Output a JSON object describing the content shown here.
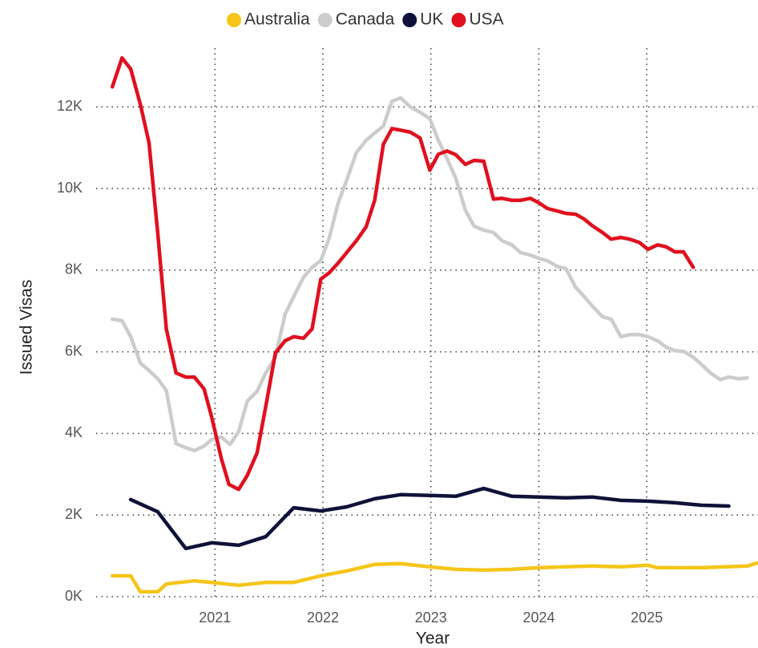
{
  "chart_data": {
    "type": "line",
    "x_label": "Year",
    "y_label": "Issued Visas",
    "xlim": [
      2019.9,
      2026.03
    ],
    "xticks": [
      2021,
      2022,
      2023,
      2024,
      2025
    ],
    "ylim": [
      0,
      13440
    ],
    "yticks": [
      {
        "value": 0,
        "label": "0K"
      },
      {
        "value": 2000,
        "label": "2K"
      },
      {
        "value": 4000,
        "label": "4K"
      },
      {
        "value": 6000,
        "label": "6K"
      },
      {
        "value": 8000,
        "label": "8K"
      },
      {
        "value": 10000,
        "label": "10K"
      },
      {
        "value": 12000,
        "label": "12K"
      }
    ],
    "grid": true,
    "legend": "top",
    "series": [
      {
        "name": "Australia",
        "color": "#f5c518",
        "x": [
          2020.05,
          2020.22,
          2020.31,
          2020.47,
          2020.55,
          2020.81,
          2020.97,
          2021.22,
          2021.47,
          2021.73,
          2021.98,
          2022.22,
          2022.48,
          2022.72,
          2022.99,
          2023.23,
          2023.49,
          2023.75,
          2024.0,
          2024.25,
          2024.5,
          2024.76,
          2025.01,
          2025.1,
          2025.51,
          2025.93,
          2026.03
        ],
        "values": [
          510,
          510,
          120,
          120,
          310,
          390,
          350,
          280,
          350,
          350,
          510,
          630,
          790,
          810,
          730,
          670,
          650,
          670,
          710,
          730,
          750,
          730,
          770,
          710,
          710,
          750,
          830
        ]
      },
      {
        "name": "Canada",
        "color": "#cccccc",
        "x": [
          2020.05,
          2020.14,
          2020.22,
          2020.31,
          2020.39,
          2020.47,
          2020.55,
          2020.64,
          2020.73,
          2020.81,
          2020.9,
          2020.97,
          2021.06,
          2021.14,
          2021.22,
          2021.3,
          2021.39,
          2021.47,
          2021.56,
          2021.65,
          2021.73,
          2021.82,
          2021.9,
          2021.98,
          2022.06,
          2022.14,
          2022.22,
          2022.31,
          2022.4,
          2022.48,
          2022.56,
          2022.64,
          2022.72,
          2022.81,
          2022.9,
          2022.99,
          2023.07,
          2023.15,
          2023.23,
          2023.32,
          2023.4,
          2023.49,
          2023.58,
          2023.66,
          2023.75,
          2023.83,
          2023.92,
          2024.0,
          2024.08,
          2024.17,
          2024.25,
          2024.34,
          2024.42,
          2024.5,
          2024.59,
          2024.67,
          2024.76,
          2024.84,
          2024.93,
          2025.01,
          2025.1,
          2025.18,
          2025.26,
          2025.34,
          2025.43,
          2025.51,
          2025.59,
          2025.68,
          2025.76,
          2025.85,
          2025.93
        ],
        "values": [
          6800,
          6760,
          6370,
          5720,
          5540,
          5340,
          5050,
          3750,
          3650,
          3580,
          3690,
          3850,
          3910,
          3730,
          4050,
          4790,
          5030,
          5480,
          5870,
          6920,
          7350,
          7820,
          8070,
          8230,
          8800,
          9630,
          10200,
          10880,
          11180,
          11360,
          11530,
          12140,
          12220,
          12000,
          11870,
          11710,
          11180,
          10730,
          10260,
          9470,
          9080,
          8980,
          8920,
          8720,
          8620,
          8430,
          8370,
          8290,
          8230,
          8090,
          8040,
          7580,
          7350,
          7110,
          6860,
          6800,
          6370,
          6420,
          6420,
          6370,
          6270,
          6110,
          6030,
          6010,
          5870,
          5680,
          5480,
          5320,
          5380,
          5340,
          5360
        ]
      },
      {
        "name": "UK",
        "color": "#0f1238",
        "x": [
          2020.22,
          2020.47,
          2020.73,
          2020.97,
          2021.22,
          2021.47,
          2021.73,
          2021.98,
          2022.22,
          2022.48,
          2022.72,
          2022.99,
          2023.23,
          2023.49,
          2023.75,
          2024.0,
          2024.25,
          2024.5,
          2024.76,
          2025.01,
          2025.26,
          2025.51,
          2025.76
        ],
        "values": [
          2380,
          2080,
          1180,
          1320,
          1260,
          1470,
          2180,
          2100,
          2200,
          2400,
          2500,
          2480,
          2460,
          2650,
          2460,
          2440,
          2420,
          2440,
          2360,
          2340,
          2300,
          2240,
          2220
        ]
      },
      {
        "name": "USA",
        "color": "#e0101e",
        "x": [
          2020.05,
          2020.14,
          2020.22,
          2020.31,
          2020.39,
          2020.47,
          2020.55,
          2020.64,
          2020.73,
          2020.81,
          2020.9,
          2020.97,
          2021.06,
          2021.13,
          2021.22,
          2021.3,
          2021.39,
          2021.48,
          2021.56,
          2021.65,
          2021.73,
          2021.82,
          2021.9,
          2021.98,
          2022.06,
          2022.14,
          2022.22,
          2022.31,
          2022.4,
          2022.48,
          2022.56,
          2022.64,
          2022.72,
          2022.81,
          2022.9,
          2022.99,
          2023.07,
          2023.15,
          2023.23,
          2023.32,
          2023.4,
          2023.49,
          2023.58,
          2023.66,
          2023.75,
          2023.83,
          2023.92,
          2024.0,
          2024.08,
          2024.17,
          2024.25,
          2024.34,
          2024.42,
          2024.5,
          2024.59,
          2024.67,
          2024.76,
          2024.84,
          2024.93,
          2025.01,
          2025.1,
          2025.18,
          2025.26,
          2025.34,
          2025.43
        ],
        "values": [
          12490,
          13200,
          12930,
          12060,
          11120,
          8920,
          6560,
          5480,
          5380,
          5380,
          5090,
          4400,
          3380,
          2750,
          2630,
          2970,
          3520,
          4790,
          5970,
          6270,
          6370,
          6330,
          6560,
          7780,
          7940,
          8170,
          8430,
          8720,
          9060,
          9710,
          11080,
          11470,
          11430,
          11380,
          11240,
          10450,
          10840,
          10920,
          10830,
          10590,
          10690,
          10670,
          9740,
          9760,
          9710,
          9710,
          9760,
          9650,
          9510,
          9450,
          9390,
          9370,
          9250,
          9080,
          8920,
          8760,
          8800,
          8760,
          8680,
          8510,
          8620,
          8570,
          8450,
          8450,
          8070
        ]
      }
    ]
  }
}
